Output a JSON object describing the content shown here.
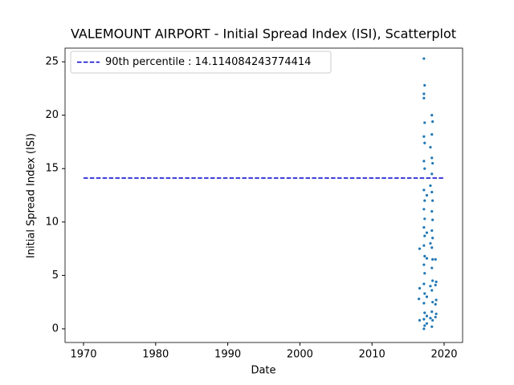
{
  "chart_data": {
    "type": "scatter",
    "title": "VALEMOUNT AIRPORT - Initial Spread Index (ISI), Scatterplot",
    "xlabel": "Date",
    "ylabel": "Initial Spread Index (ISI)",
    "xlim": [
      1967.44,
      2022.56
    ],
    "ylim": [
      -1.28,
      26.28
    ],
    "xticks": [
      1970,
      1980,
      1990,
      2000,
      2010,
      2020
    ],
    "yticks": [
      0,
      5,
      10,
      15,
      20,
      25
    ],
    "color": "#1f77b4",
    "x": [
      2016.6,
      2016.6,
      2016.5,
      2016.6,
      2017.2,
      2017.3,
      2017.2,
      2017.2,
      2017.3,
      2017.2,
      2017.3,
      2017.2,
      2017.3,
      2017.2,
      2017.3,
      2017.2,
      2017.3,
      2017.2,
      2017.3,
      2017.2,
      2017.3,
      2017.2,
      2017.3,
      2017.2,
      2017.3,
      2017.2,
      2017.3,
      2017.2,
      2017.3,
      2017.2,
      2017.6,
      2017.6,
      2017.6,
      2017.6,
      2017.6,
      2017.6,
      2018.3,
      2018.4,
      2018.3,
      2018.3,
      2018.4,
      2018.3,
      2018.3,
      2018.4,
      2018.3,
      2018.4,
      2018.3,
      2018.4,
      2018.3,
      2018.4,
      2018.3,
      2018.4,
      2018.3,
      2018.4,
      2018.3,
      2018.4,
      2018.3,
      2018.1,
      2018.1,
      2018.1,
      2018.1,
      2018.1,
      2018.8,
      2018.9,
      2018.8,
      2018.9,
      2018.8,
      2018.9,
      2018.8
    ],
    "values": [
      7.5,
      3.8,
      2.8,
      0.8,
      25.3,
      22.8,
      22.0,
      21.6,
      19.3,
      18.0,
      17.4,
      15.7,
      15.0,
      13.0,
      12.0,
      11.2,
      10.3,
      9.5,
      8.7,
      7.8,
      6.8,
      6.0,
      5.2,
      4.2,
      3.3,
      2.4,
      1.5,
      0.9,
      0.3,
      0.0,
      12.5,
      9.0,
      6.6,
      3.0,
      1.2,
      0.5,
      20.0,
      19.4,
      18.2,
      16.0,
      15.5,
      14.5,
      12.8,
      12.0,
      11.0,
      10.2,
      9.2,
      8.5,
      7.6,
      6.5,
      5.7,
      4.5,
      3.6,
      2.5,
      1.6,
      0.8,
      0.2,
      17.0,
      13.4,
      8.0,
      4.0,
      1.0,
      6.5,
      4.4,
      4.1,
      2.7,
      2.3,
      1.4,
      1.1
    ],
    "hline": {
      "name": "90th percentile : 14.114084243774414",
      "value": 14.114084243774414,
      "x": [
        1970,
        2020
      ],
      "color": "#0000cd"
    },
    "legend": "upper left"
  }
}
